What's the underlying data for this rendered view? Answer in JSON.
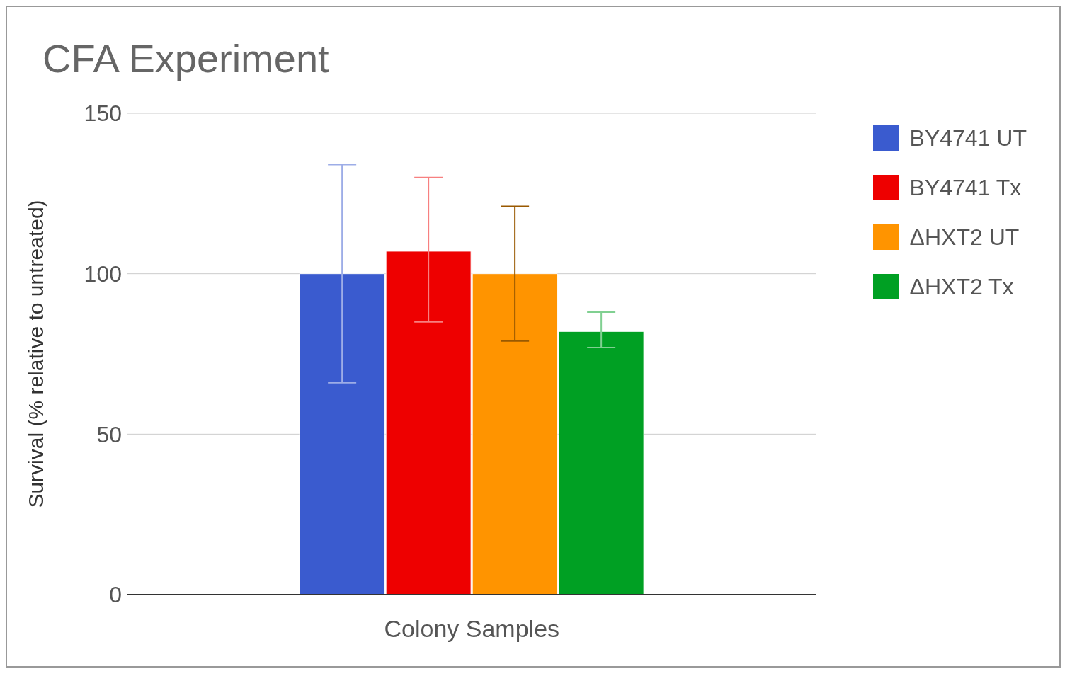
{
  "chart_data": {
    "type": "bar",
    "title": "CFA Experiment",
    "xlabel": "Colony Samples",
    "ylabel": "Survival (% relative to untreated)",
    "categories": [
      null
    ],
    "series": [
      {
        "name": "BY4741 UT",
        "color": "#3a5bcf",
        "values": [
          100
        ],
        "errors": [
          [
            66,
            134
          ]
        ]
      },
      {
        "name": "BY4741 Tx",
        "color": "#ee0000",
        "values": [
          107
        ],
        "errors": [
          [
            85,
            130
          ]
        ]
      },
      {
        "name": "ΔHXT2 UT",
        "color": "#ff9400",
        "values": [
          100
        ],
        "errors": [
          [
            79,
            121
          ]
        ]
      },
      {
        "name": "ΔHXT2 Tx",
        "color": "#00a023",
        "values": [
          82
        ],
        "errors": [
          [
            77,
            88
          ]
        ]
      }
    ],
    "ylim": [
      0,
      150
    ],
    "yticks": [
      0,
      50,
      100,
      150
    ],
    "grid": "y",
    "legend": "top right"
  }
}
